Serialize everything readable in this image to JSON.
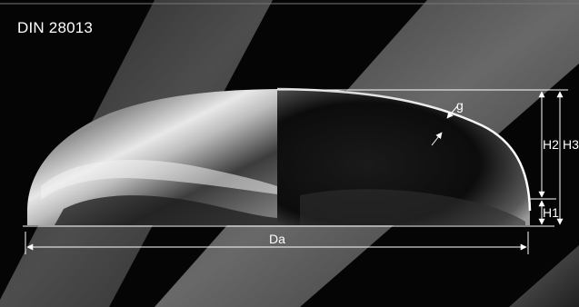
{
  "standard": "DIN 28013",
  "dimensions": {
    "da": "Da",
    "h1": "H1",
    "h2": "H2",
    "h3": "H3",
    "g": "g"
  },
  "colors": {
    "background": "#050505",
    "stripe": "#4a4a4a",
    "dimension_line": "#ffffff"
  }
}
